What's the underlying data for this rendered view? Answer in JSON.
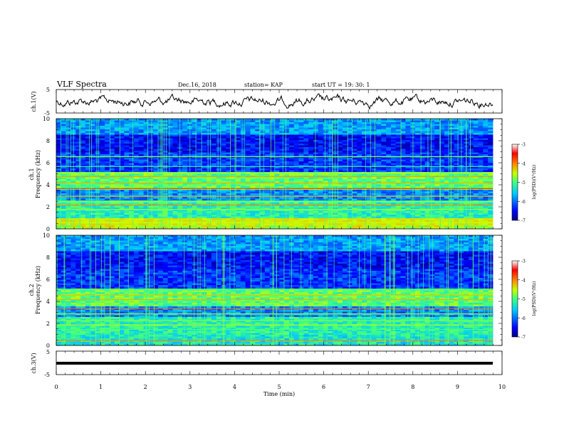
{
  "header": {
    "title": "VLF Spectra",
    "date": "Dec.16, 2018",
    "station": "station= KAP",
    "start": "start  UT =   19: 30: 1"
  },
  "chart_data": [
    {
      "type": "line",
      "name": "ch1-waveform",
      "ylabel": "ch.1(V)",
      "ylim": [
        -5,
        5
      ],
      "yticks": [
        "5",
        "-5"
      ],
      "xlim": [
        0,
        10
      ],
      "grid": false
    },
    {
      "type": "heatmap",
      "name": "ch1-spectrogram",
      "ylabel": "ch.1\nFrequency (kHz)",
      "ylim": [
        0,
        10
      ],
      "yticks": [
        "0",
        "2",
        "4",
        "6",
        "8",
        "10"
      ],
      "xlim": [
        0,
        10
      ],
      "data_end_min": 9.8,
      "colorbar": {
        "label": "log(PSD)(V²/Hz)",
        "range": [
          -7,
          -3
        ],
        "ticks": [
          "-3",
          "-4",
          "-5",
          "-6",
          "-7"
        ]
      }
    },
    {
      "type": "heatmap",
      "name": "ch2-spectrogram",
      "ylabel": "ch.2\nFrequency (kHz)",
      "ylim": [
        0,
        10
      ],
      "yticks": [
        "0",
        "2",
        "4",
        "6",
        "8",
        "10"
      ],
      "xlim": [
        0,
        10
      ],
      "data_end_min": 9.8,
      "colorbar": {
        "label": "log(PSD)(V²/Hz)",
        "range": [
          -7,
          -3
        ],
        "ticks": [
          "-3",
          "-4",
          "-5",
          "-6",
          "-7"
        ]
      }
    },
    {
      "type": "line",
      "name": "ch3-waveform",
      "ylabel": "ch.3(V)",
      "ylim": [
        -5,
        5
      ],
      "yticks": [
        "5",
        "-5"
      ],
      "xlim": [
        0,
        10
      ],
      "constant_value": 0,
      "grid": false
    }
  ],
  "xaxis": {
    "label": "Time (min)",
    "ticks": [
      "0",
      "1",
      "2",
      "3",
      "4",
      "5",
      "6",
      "7",
      "8",
      "9",
      "10"
    ]
  }
}
